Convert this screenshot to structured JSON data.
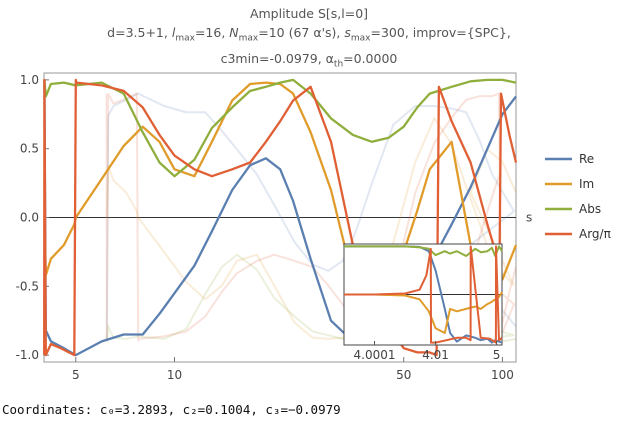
{
  "title": {
    "line1": "Amplitude S[s,l=0]",
    "line2": "d=3.5+1, lmax=16, Nmax=10 (67 α's), smax=300, improv={SPC},",
    "line3": "c3min=-0.0979, αth=0.0000"
  },
  "coordinates": "Coordinates: c₀=3.2893, c₂=0.1004, c₃=−0.0979",
  "colors": {
    "Re": "#5a7fb0",
    "Im": "#e09b2a",
    "Abs": "#8fae3b",
    "Arg/π": "#e05f35"
  },
  "chart_data": [
    {
      "type": "line",
      "xscale": "log",
      "xlabel": "s",
      "ylabel": "",
      "xlim": [
        4.0,
        110
      ],
      "ylim": [
        -1.05,
        1.05
      ],
      "xticks": [
        5,
        10,
        50,
        100
      ],
      "yticks": [
        -1.0,
        -0.5,
        0.0,
        0.5,
        1.0
      ],
      "ytick_labels": [
        "-1.0",
        "-0.5",
        "0.0",
        "0.5",
        "1.0"
      ],
      "grid": false,
      "legend_position": "right",
      "series": [
        {
          "name": "Re",
          "color": "#5a7fb0",
          "x": [
            4.01,
            4.05,
            4.2,
            4.6,
            5.0,
            6.0,
            7.0,
            8.0,
            9.0,
            10.0,
            11.5,
            13.0,
            15.0,
            17.0,
            19.0,
            21.0,
            23.0,
            26.0,
            30.0,
            35.0,
            40.0,
            45.0,
            50.0,
            55.0,
            60.0,
            70.0,
            80.0,
            90.0,
            100.0,
            110.0
          ],
          "y": [
            1.0,
            -0.82,
            -0.9,
            -0.95,
            -1.0,
            -0.9,
            -0.85,
            -0.85,
            -0.7,
            -0.55,
            -0.35,
            -0.1,
            0.2,
            0.38,
            0.43,
            0.35,
            0.12,
            -0.3,
            -0.75,
            -0.9,
            -0.9,
            -0.88,
            -0.85,
            -0.62,
            -0.35,
            -0.05,
            0.22,
            0.5,
            0.75,
            0.88
          ]
        },
        {
          "name": "Im",
          "color": "#e09b2a",
          "x": [
            4.01,
            4.05,
            4.2,
            4.6,
            4.95,
            5.0,
            6.0,
            7.0,
            8.0,
            9.0,
            10.0,
            11.5,
            13.0,
            15.0,
            17.0,
            19.0,
            21.0,
            23.0,
            26.0,
            30.0,
            35.0,
            40.0,
            45.0,
            50.0,
            55.0,
            60.0,
            70.0,
            80.0,
            90.0,
            100.0,
            110.0
          ],
          "y": [
            0.0,
            -0.42,
            -0.3,
            -0.2,
            -0.05,
            0.0,
            0.28,
            0.52,
            0.66,
            0.55,
            0.35,
            0.3,
            0.55,
            0.85,
            0.97,
            0.98,
            0.97,
            0.9,
            0.62,
            0.2,
            -0.45,
            -0.8,
            -0.6,
            -0.25,
            0.05,
            0.35,
            0.55,
            -0.2,
            -0.55,
            -0.45,
            -0.2
          ]
        },
        {
          "name": "Abs",
          "color": "#8fae3b",
          "x": [
            4.01,
            4.05,
            4.2,
            4.6,
            5.0,
            6.0,
            7.0,
            8.0,
            9.0,
            10.0,
            11.5,
            13.0,
            15.0,
            17.0,
            19.0,
            21.0,
            23.0,
            26.0,
            30.0,
            35.0,
            40.0,
            45.0,
            50.0,
            55.0,
            60.0,
            70.0,
            80.0,
            90.0,
            100.0,
            110.0
          ],
          "y": [
            1.0,
            0.88,
            0.97,
            0.98,
            0.96,
            0.98,
            0.9,
            0.62,
            0.4,
            0.3,
            0.42,
            0.65,
            0.8,
            0.92,
            0.95,
            0.98,
            1.0,
            0.9,
            0.72,
            0.6,
            0.55,
            0.58,
            0.66,
            0.8,
            0.9,
            0.95,
            0.99,
            1.0,
            1.0,
            0.98
          ]
        },
        {
          "name": "Arg/π",
          "color": "#e05f35",
          "x": [
            4.005,
            4.01,
            4.05,
            4.2,
            4.5,
            4.95,
            5.0,
            5.02,
            6.0,
            7.0,
            8.0,
            9.0,
            10.0,
            11.5,
            13.0,
            15.0,
            17.0,
            19.0,
            21.0,
            23.0,
            26.0,
            30.0,
            35.0,
            40.0,
            45.0,
            50.0,
            55.0,
            60.0,
            63.0,
            64.0,
            70.0,
            80.0,
            90.0,
            98.0,
            99.0,
            105.0,
            110.0
          ],
          "y": [
            -1.0,
            1.0,
            -1.0,
            -0.92,
            -0.95,
            -1.0,
            1.0,
            0.98,
            0.96,
            0.92,
            0.8,
            0.6,
            0.45,
            0.35,
            0.3,
            0.35,
            0.4,
            0.55,
            0.7,
            0.85,
            0.95,
            0.55,
            -0.2,
            -0.6,
            -0.8,
            -0.95,
            -0.98,
            -0.98,
            -1.0,
            0.95,
            0.7,
            0.4,
            -0.05,
            -0.35,
            0.9,
            0.6,
            0.4
          ]
        }
      ]
    },
    {
      "type": "line",
      "role": "inset",
      "xscale": "log(s-4)",
      "xticks": [
        4.0001,
        4.01,
        5
      ],
      "xtick_labels": [
        "4.0001",
        "4.01",
        "5"
      ],
      "ylim": [
        -1.05,
        1.05
      ],
      "series": [
        {
          "name": "Re",
          "x": [
            4.00001,
            4.0001,
            4.001,
            4.003,
            4.006,
            4.01,
            4.02,
            4.03,
            4.05,
            4.1,
            4.2,
            4.3,
            4.5,
            4.7,
            4.9,
            5.2,
            5.5
          ],
          "y": [
            1.0,
            1.0,
            1.0,
            0.99,
            0.9,
            0.5,
            -0.3,
            -0.8,
            -0.98,
            -0.85,
            -0.9,
            -0.95,
            -0.92,
            -1.0,
            -0.95,
            -0.98,
            -1.0
          ]
        },
        {
          "name": "Im",
          "x": [
            4.00001,
            4.0001,
            4.001,
            4.003,
            4.006,
            4.01,
            4.02,
            4.03,
            4.05,
            4.1,
            4.2,
            4.3,
            4.5,
            4.7,
            4.9,
            5.2,
            5.5
          ],
          "y": [
            0.0,
            0.0,
            -0.02,
            -0.1,
            -0.35,
            -0.7,
            -0.8,
            -0.3,
            -0.35,
            -0.3,
            -0.25,
            -0.3,
            -0.2,
            -0.15,
            -0.1,
            -0.05,
            0.05
          ]
        },
        {
          "name": "Abs",
          "x": [
            4.00001,
            4.0001,
            4.001,
            4.003,
            4.006,
            4.01,
            4.02,
            4.03,
            4.05,
            4.1,
            4.2,
            4.3,
            4.5,
            4.7,
            4.9,
            5.2,
            5.5
          ],
          "y": [
            1.0,
            1.0,
            1.0,
            0.98,
            0.95,
            0.82,
            0.9,
            0.85,
            0.9,
            0.8,
            0.95,
            0.88,
            0.9,
            0.97,
            0.8,
            1.0,
            0.9
          ]
        },
        {
          "name": "Arg/π",
          "x": [
            4.00001,
            4.0001,
            4.001,
            4.003,
            4.005,
            4.007,
            4.0071,
            4.01,
            4.05,
            4.1,
            4.14,
            4.141,
            4.3,
            4.6,
            4.95,
            4.951,
            5.2,
            5.5
          ],
          "y": [
            0.0,
            0.0,
            0.02,
            0.1,
            0.4,
            0.95,
            -1.0,
            -1.0,
            -0.9,
            -0.9,
            -0.95,
            1.0,
            -0.9,
            -0.92,
            -1.0,
            1.0,
            -0.95,
            -0.9
          ]
        }
      ]
    }
  ]
}
